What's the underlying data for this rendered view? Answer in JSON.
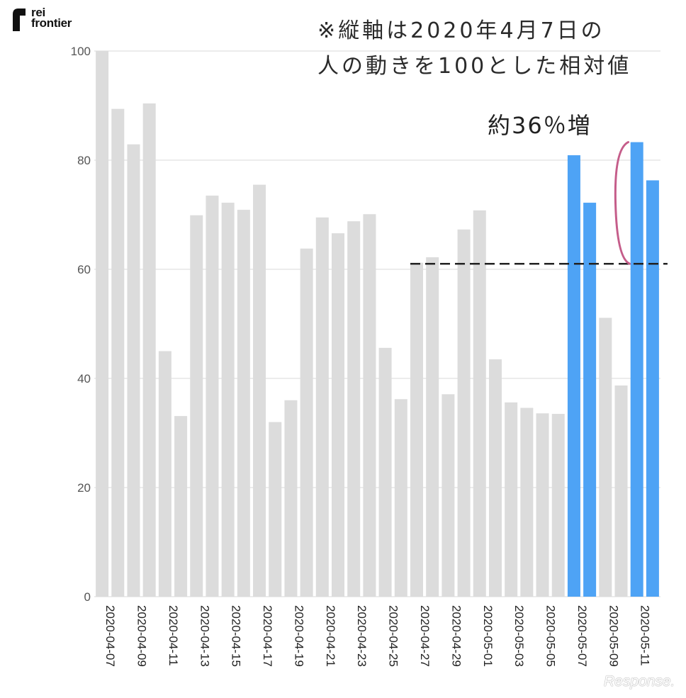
{
  "brand": {
    "logo_line1": "rei",
    "logo_line2": "frontier",
    "watermark": "Response."
  },
  "notes": {
    "line1": "※縦軸は2020年4月7日の",
    "line2": "人の動きを100とした相対値",
    "increase_label": "約36％増"
  },
  "colors": {
    "bar_default": "#dcdcdc",
    "bar_highlight": "#4ea3f5",
    "grid": "#e6e6e6",
    "reference_line": "#222222",
    "bracket": "#c55d8a"
  },
  "chart_data": {
    "type": "bar",
    "categories": [
      "2020-04-07",
      "2020-04-08",
      "2020-04-09",
      "2020-04-10",
      "2020-04-11",
      "2020-04-12",
      "2020-04-13",
      "2020-04-14",
      "2020-04-15",
      "2020-04-16",
      "2020-04-17",
      "2020-04-18",
      "2020-04-19",
      "2020-04-20",
      "2020-04-21",
      "2020-04-22",
      "2020-04-23",
      "2020-04-24",
      "2020-04-25",
      "2020-04-26",
      "2020-04-27",
      "2020-04-28",
      "2020-04-29",
      "2020-04-30",
      "2020-05-01",
      "2020-05-02",
      "2020-05-03",
      "2020-05-04",
      "2020-05-05",
      "2020-05-06",
      "2020-05-07",
      "2020-05-08",
      "2020-05-09",
      "2020-05-10",
      "2020-05-11",
      "2020-05-12"
    ],
    "values": [
      100,
      89.4,
      82.9,
      90.4,
      45,
      33.1,
      69.9,
      73.5,
      72.2,
      70.9,
      75.5,
      32,
      36,
      63.8,
      69.5,
      66.6,
      68.8,
      70.1,
      45.6,
      36.2,
      61.2,
      62.2,
      37.1,
      67.3,
      70.8,
      43.5,
      35.6,
      34.6,
      33.6,
      33.5,
      80.9,
      72.2,
      51.1,
      38.7,
      83.3,
      76.3
    ],
    "highlighted_categories": [
      "2020-05-07",
      "2020-05-08",
      "2020-05-11",
      "2020-05-12"
    ],
    "x_tick_labels": [
      "2020-04-07",
      "2020-04-09",
      "2020-04-11",
      "2020-04-13",
      "2020-04-15",
      "2020-04-17",
      "2020-04-19",
      "2020-04-21",
      "2020-04-23",
      "2020-04-25",
      "2020-04-27",
      "2020-04-29",
      "2020-05-01",
      "2020-05-03",
      "2020-05-05",
      "2020-05-07",
      "2020-05-09",
      "2020-05-11"
    ],
    "y_ticks": [
      0,
      20,
      40,
      60,
      80,
      100
    ],
    "ylim": [
      0,
      100
    ],
    "reference_line": {
      "y": 61,
      "x_start": "2020-04-27",
      "x_end": "2020-05-12",
      "style": "dashed"
    },
    "bracket": {
      "category": "2020-05-11",
      "y_from": 61,
      "y_to": 83.3
    },
    "title": "",
    "xlabel": "",
    "ylabel": "",
    "grid": true,
    "legend": "none"
  }
}
